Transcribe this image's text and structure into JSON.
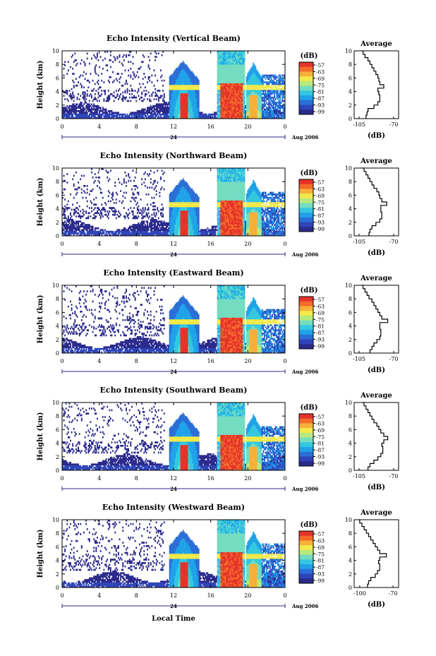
{
  "figure": {
    "xlabel": "Local Time",
    "ylabel": "Height (km)",
    "date_label_day": "24",
    "date_label_month": "Aug 2006",
    "avg_title": "Average",
    "avg_xlabel": "(dB)",
    "colorbar_unit": "(dB)",
    "colorbar_ticks": [
      "-57",
      "-63",
      "-69",
      "-75",
      "-81",
      "-87",
      "-93",
      "-99"
    ],
    "colorscale": [
      "#2b2a8c",
      "#2f45b8",
      "#2a6fd6",
      "#1fa2e8",
      "#35c7e0",
      "#74dcc0",
      "#b7e97c",
      "#f2e94a",
      "#f6b03a",
      "#f36a2a",
      "#e5332a"
    ]
  },
  "chart_data": [
    {
      "type": "heatmap",
      "title": "Echo Intensity (Vertical Beam)",
      "x_ticks": [
        "0",
        "4",
        "8",
        "12",
        "16",
        "20",
        "0"
      ],
      "y_ticks": [
        "0",
        "2",
        "4",
        "6",
        "8",
        "10"
      ],
      "xlim": [
        0,
        24
      ],
      "ylim": [
        0,
        10
      ],
      "avg_profile": {
        "x_ticks": [
          "-105",
          "-70"
        ],
        "xlim": [
          -110,
          -65
        ],
        "height_km": [
          0,
          0.5,
          1,
          1.5,
          2,
          2.5,
          3,
          3.5,
          4,
          4.5,
          5,
          5.5,
          6,
          6.5,
          7,
          7.5,
          8,
          8.5,
          9,
          9.5,
          10
        ],
        "db": [
          -98,
          -97,
          -96,
          -90,
          -86,
          -84,
          -84,
          -85,
          -86,
          -80,
          -84,
          -85,
          -86,
          -88,
          -90,
          -92,
          -94,
          -96,
          -99,
          -101,
          -103
        ]
      }
    },
    {
      "type": "heatmap",
      "title": "Echo Intensity (Northward Beam)",
      "x_ticks": [
        "0",
        "4",
        "8",
        "12",
        "16",
        "20",
        "0"
      ],
      "y_ticks": [
        "0",
        "2",
        "4",
        "6",
        "8",
        "10"
      ],
      "xlim": [
        0,
        24
      ],
      "ylim": [
        0,
        10
      ],
      "avg_profile": {
        "x_ticks": [
          "-105",
          "-70"
        ],
        "xlim": [
          -110,
          -65
        ],
        "height_km": [
          0,
          0.5,
          1,
          1.5,
          2,
          2.5,
          3,
          3.5,
          4,
          4.5,
          5,
          5.5,
          6,
          6.5,
          7,
          7.5,
          8,
          8.5,
          9,
          9.5,
          10
        ],
        "db": [
          -95,
          -94,
          -92,
          -88,
          -84,
          -82,
          -82,
          -83,
          -83,
          -77,
          -82,
          -84,
          -85,
          -87,
          -90,
          -92,
          -94,
          -96,
          -98,
          -100,
          -102
        ]
      }
    },
    {
      "type": "heatmap",
      "title": "Echo Intensity (Eastward Beam)",
      "x_ticks": [
        "0",
        "4",
        "8",
        "12",
        "16",
        "20",
        "0"
      ],
      "y_ticks": [
        "0",
        "2",
        "4",
        "6",
        "8",
        "10"
      ],
      "xlim": [
        0,
        24
      ],
      "ylim": [
        0,
        10
      ],
      "avg_profile": {
        "x_ticks": [
          "-105",
          "-70"
        ],
        "xlim": [
          -110,
          -65
        ],
        "height_km": [
          0,
          0.5,
          1,
          1.5,
          2,
          2.5,
          3,
          3.5,
          4,
          4.5,
          5,
          5.5,
          6,
          6.5,
          7,
          7.5,
          8,
          8.5,
          9,
          9.5,
          10
        ],
        "db": [
          -94,
          -92,
          -90,
          -87,
          -84,
          -83,
          -83,
          -84,
          -84,
          -76,
          -82,
          -84,
          -86,
          -88,
          -90,
          -92,
          -95,
          -97,
          -99,
          -101,
          -103
        ]
      }
    },
    {
      "type": "heatmap",
      "title": "Echo Intensity (Southward Beam)",
      "x_ticks": [
        "0",
        "4",
        "8",
        "12",
        "16",
        "20",
        "0"
      ],
      "y_ticks": [
        "0",
        "2",
        "4",
        "6",
        "8",
        "10"
      ],
      "xlim": [
        0,
        24
      ],
      "ylim": [
        0,
        10
      ],
      "avg_profile": {
        "x_ticks": [
          "-105",
          "-70"
        ],
        "xlim": [
          -110,
          -65
        ],
        "height_km": [
          0,
          0.5,
          1,
          1.5,
          2,
          2.5,
          3,
          3.5,
          4,
          4.5,
          5,
          5.5,
          6,
          6.5,
          7,
          7.5,
          8,
          8.5,
          9,
          9.5,
          10
        ],
        "db": [
          -96,
          -94,
          -90,
          -86,
          -83,
          -81,
          -81,
          -82,
          -80,
          -76,
          -80,
          -83,
          -85,
          -87,
          -90,
          -92,
          -94,
          -96,
          -98,
          -100,
          -102
        ]
      }
    },
    {
      "type": "heatmap",
      "title": "Echo Intensity (Westward Beam)",
      "x_ticks": [
        "0",
        "4",
        "8",
        "12",
        "16",
        "20",
        "0"
      ],
      "y_ticks": [
        "0",
        "2",
        "4",
        "6",
        "8",
        "10"
      ],
      "xlim": [
        0,
        24
      ],
      "ylim": [
        0,
        10
      ],
      "avg_profile": {
        "x_ticks": [
          "-100",
          "-70"
        ],
        "xlim": [
          -105,
          -65
        ],
        "height_km": [
          0,
          0.5,
          1,
          1.5,
          2,
          2.5,
          3,
          3.5,
          4,
          4.5,
          5,
          5.5,
          6,
          6.5,
          7,
          7.5,
          8,
          8.5,
          9,
          9.5,
          10
        ],
        "db": [
          -93,
          -92,
          -90,
          -86,
          -84,
          -82,
          -82,
          -83,
          -82,
          -76,
          -82,
          -84,
          -86,
          -88,
          -90,
          -92,
          -94,
          -96,
          -98,
          -100,
          -101
        ]
      }
    }
  ]
}
